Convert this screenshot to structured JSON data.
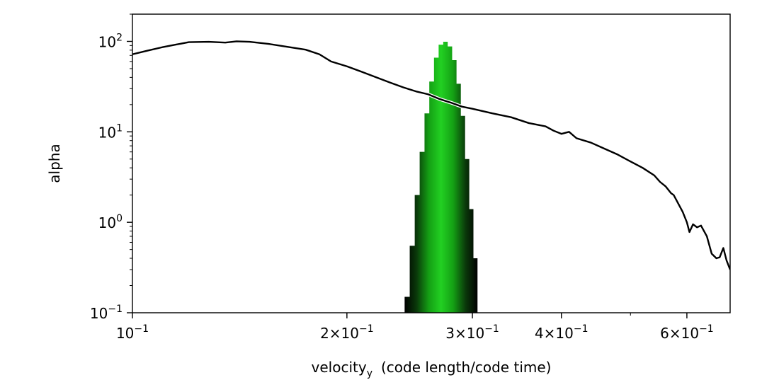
{
  "chart_data": {
    "type": "line",
    "xscale": "log",
    "yscale": "log",
    "xlim": [
      0.1,
      0.69
    ],
    "ylim": [
      0.1,
      200
    ],
    "grid": false,
    "xlabel": "velocity",
    "xlabel_subscript": "y",
    "xlabel_units": "(code length/code time)",
    "ylabel": "alpha",
    "x_ticks": [
      {
        "value": 0.1,
        "base": "10",
        "exp": "−1"
      },
      {
        "value": 0.2,
        "base": "2×10",
        "exp": "−1"
      },
      {
        "value": 0.3,
        "base": "3×10",
        "exp": "−1"
      },
      {
        "value": 0.4,
        "base": "4×10",
        "exp": "−1"
      },
      {
        "value": 0.6,
        "base": "6×10",
        "exp": "−1"
      }
    ],
    "y_ticks": [
      {
        "value": 0.1,
        "base": "10",
        "exp": "−1"
      },
      {
        "value": 1,
        "base": "10",
        "exp": "0"
      },
      {
        "value": 10,
        "base": "10",
        "exp": "1"
      },
      {
        "value": 100,
        "base": "10",
        "exp": "2"
      }
    ],
    "series": [
      {
        "kind": "line",
        "color": "#000000",
        "points": [
          [
            0.1,
            72
          ],
          [
            0.105,
            79
          ],
          [
            0.11,
            86
          ],
          [
            0.115,
            92
          ],
          [
            0.12,
            98
          ],
          [
            0.128,
            99
          ],
          [
            0.135,
            97
          ],
          [
            0.14,
            100
          ],
          [
            0.146,
            99
          ],
          [
            0.155,
            94
          ],
          [
            0.165,
            87
          ],
          [
            0.175,
            81
          ],
          [
            0.183,
            72
          ],
          [
            0.19,
            60
          ],
          [
            0.2,
            53
          ],
          [
            0.21,
            46
          ],
          [
            0.22,
            40
          ],
          [
            0.23,
            35
          ],
          [
            0.24,
            31
          ],
          [
            0.25,
            28
          ],
          [
            0.26,
            26
          ],
          [
            0.27,
            23
          ],
          [
            0.28,
            21
          ],
          [
            0.29,
            19
          ],
          [
            0.3,
            18
          ],
          [
            0.32,
            16
          ],
          [
            0.34,
            14.5
          ],
          [
            0.36,
            12.5
          ],
          [
            0.38,
            11.5
          ],
          [
            0.39,
            10.3
          ],
          [
            0.4,
            9.5
          ],
          [
            0.41,
            10.0
          ],
          [
            0.42,
            8.5
          ],
          [
            0.44,
            7.6
          ],
          [
            0.46,
            6.5
          ],
          [
            0.48,
            5.6
          ],
          [
            0.5,
            4.7
          ],
          [
            0.52,
            4.0
          ],
          [
            0.54,
            3.3
          ],
          [
            0.55,
            2.8
          ],
          [
            0.56,
            2.5
          ],
          [
            0.57,
            2.1
          ],
          [
            0.575,
            2.0
          ],
          [
            0.585,
            1.55
          ],
          [
            0.592,
            1.3
          ],
          [
            0.6,
            1.0
          ],
          [
            0.605,
            0.78
          ],
          [
            0.612,
            0.95
          ],
          [
            0.62,
            0.88
          ],
          [
            0.628,
            0.92
          ],
          [
            0.64,
            0.7
          ],
          [
            0.65,
            0.45
          ],
          [
            0.66,
            0.4
          ],
          [
            0.667,
            0.41
          ],
          [
            0.675,
            0.52
          ],
          [
            0.682,
            0.38
          ],
          [
            0.69,
            0.3
          ]
        ]
      },
      {
        "kind": "histogram",
        "colormap": [
          "#000000",
          "#0a3a0a",
          "#14a014",
          "#22d022",
          "#14a014",
          "#0a3a0a",
          "#000000"
        ],
        "bins": [
          [
            0.243,
            0.15
          ],
          [
            0.247,
            0.55
          ],
          [
            0.251,
            2.0
          ],
          [
            0.255,
            6.0
          ],
          [
            0.259,
            16
          ],
          [
            0.263,
            36
          ],
          [
            0.267,
            66
          ],
          [
            0.271,
            92
          ],
          [
            0.275,
            99
          ],
          [
            0.279,
            88
          ],
          [
            0.283,
            62
          ],
          [
            0.287,
            34
          ],
          [
            0.291,
            15
          ],
          [
            0.295,
            5.0
          ],
          [
            0.299,
            1.4
          ],
          [
            0.303,
            0.4
          ]
        ]
      }
    ]
  }
}
